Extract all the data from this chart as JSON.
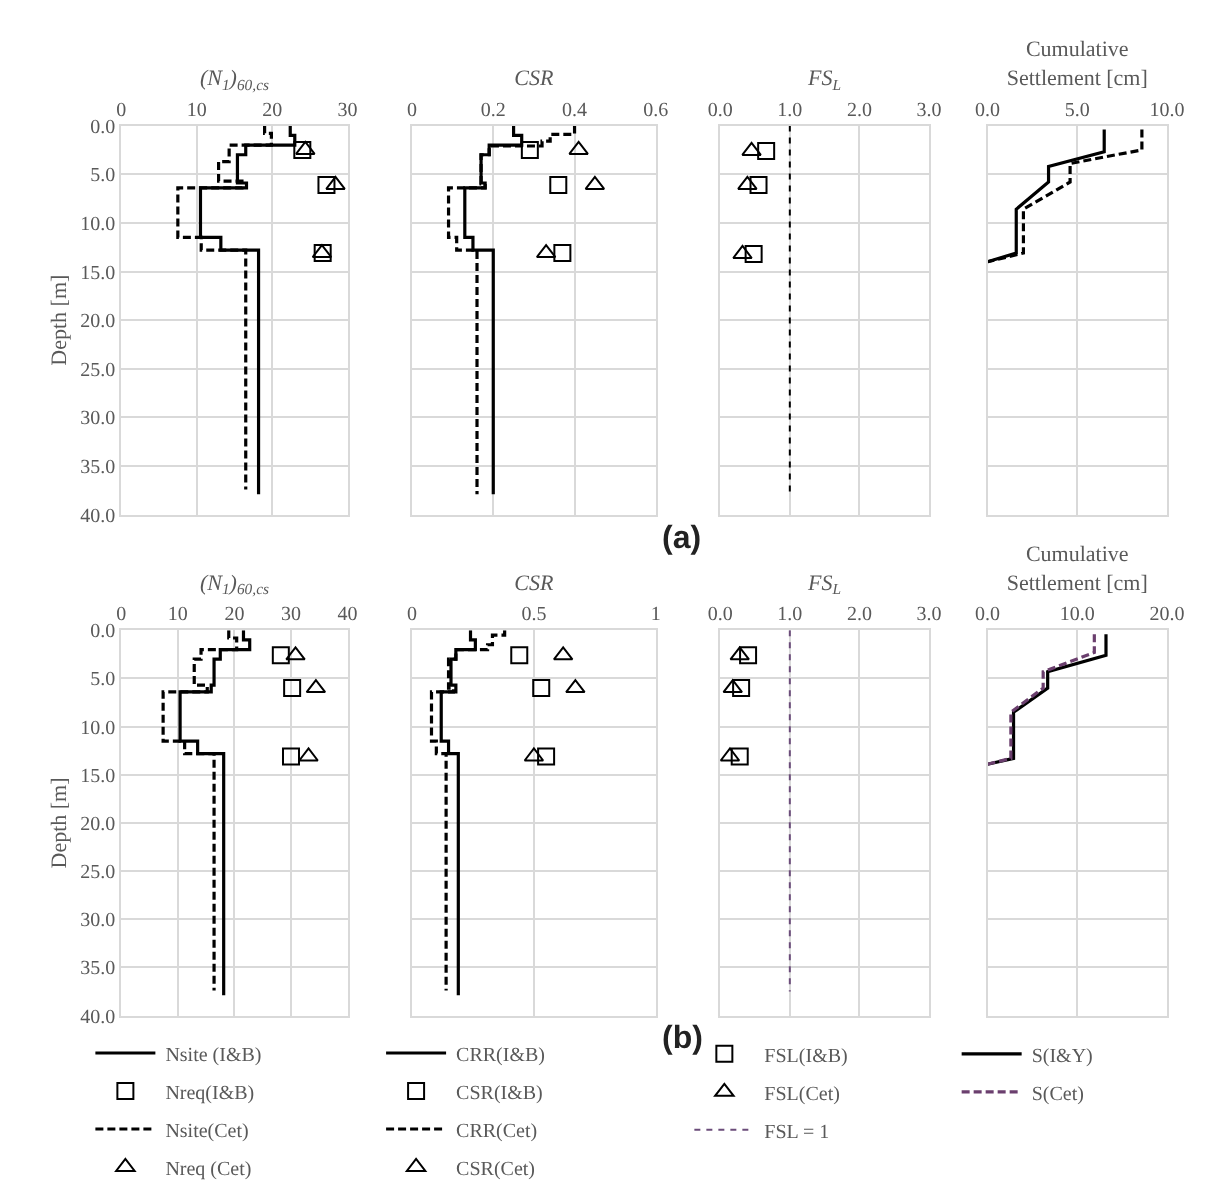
{
  "chart_data": [
    {
      "type": "line",
      "xlabel": "(N$_{1}$)$_{60,cs}$",
      "ylabel": "Depth [m]",
      "xlim": [
        0,
        30
      ],
      "xticks": [
        0,
        10,
        20,
        30
      ],
      "ylim": [
        40,
        0
      ],
      "yticks": [
        {
          "value": 0,
          "label": "0.0"
        },
        {
          "value": 5,
          "label": "5.0"
        },
        {
          "value": 10,
          "label": "10.0"
        },
        {
          "value": 15,
          "label": "15.0"
        },
        {
          "value": 20,
          "label": "20.0"
        },
        {
          "value": 25,
          "label": "25.0"
        },
        {
          "value": 30,
          "label": "30.0"
        },
        {
          "value": 35,
          "label": "35.0"
        },
        {
          "value": 40,
          "label": "40.0"
        }
      ],
      "grid": true,
      "series": [
        {
          "type": "line",
          "color": "#000000",
          "line_style": "solid",
          "marker": "none",
          "x": [
            22.4,
            22.4,
            23.0,
            23.0,
            16.5,
            16.5,
            15.4,
            15.4,
            16.6,
            16.6,
            10.5,
            10.5,
            13.2,
            13.2,
            18.2,
            18.2
          ],
          "values": [
            0,
            1.0,
            1.0,
            2.0,
            2.0,
            3.0,
            3.0,
            5.9,
            5.9,
            6.4,
            6.4,
            11.5,
            11.5,
            12.8,
            12.8,
            37.9
          ]
        },
        {
          "type": "scatter",
          "color": "#000000",
          "marker": "square",
          "x": [
            24.0,
            27.2,
            26.7
          ],
          "values": [
            2.5,
            6.1,
            13.1
          ]
        },
        {
          "type": "line",
          "color": "#000000",
          "line_style": "dashed",
          "marker": "none",
          "x": [
            19.0,
            19.0,
            19.9,
            19.9,
            14.3,
            14.3,
            12.9,
            12.9,
            16.0,
            16.0,
            7.5,
            7.5,
            10.6,
            10.6,
            16.5,
            16.5
          ],
          "values": [
            0,
            0.8,
            0.8,
            2.0,
            2.0,
            3.7,
            3.7,
            5.7,
            5.7,
            6.4,
            6.4,
            11.5,
            11.5,
            12.8,
            12.8,
            37.4
          ]
        },
        {
          "type": "scatter",
          "color": "#000000",
          "marker": "triangle",
          "x": [
            24.4,
            28.4,
            26.6
          ],
          "values": [
            2.5,
            6.1,
            13.1
          ]
        }
      ]
    },
    {
      "type": "line",
      "xlabel": "CSR",
      "xlim": [
        0,
        0.6
      ],
      "xticks": [
        0,
        0.2,
        0.4,
        0.6
      ],
      "ylim": [
        40,
        0
      ],
      "yticks": [
        0,
        5,
        10,
        15,
        20,
        25,
        30,
        35,
        40
      ],
      "grid": true,
      "tick_labels": "x",
      "series": [
        {
          "type": "line",
          "color": "#000000",
          "line_style": "solid",
          "marker": "none",
          "x": [
            0.25,
            0.25,
            0.27,
            0.27,
            0.19,
            0.19,
            0.17,
            0.17,
            0.18,
            0.18,
            0.13,
            0.13,
            0.15,
            0.15,
            0.2,
            0.2
          ],
          "values": [
            0,
            1.0,
            1.0,
            2.0,
            2.0,
            3.0,
            3.0,
            5.9,
            5.9,
            6.4,
            6.4,
            11.5,
            11.5,
            12.8,
            12.8,
            37.9
          ]
        },
        {
          "type": "scatter",
          "color": "#000000",
          "marker": "square",
          "x": [
            0.29,
            0.36,
            0.37
          ],
          "values": [
            2.5,
            6.1,
            13.1
          ]
        },
        {
          "type": "line",
          "color": "#000000",
          "line_style": "dashed",
          "marker": "none",
          "x": [
            0.4,
            0.4,
            0.34,
            0.34,
            0.32,
            0.32,
            0.19,
            0.19,
            0.17,
            0.17,
            0.18,
            0.18,
            0.09,
            0.09,
            0.11,
            0.11,
            0.16,
            0.16
          ],
          "values": [
            0,
            0.9,
            0.9,
            1.6,
            1.6,
            2.1,
            2.1,
            3.0,
            3.0,
            6.0,
            6.0,
            6.4,
            6.4,
            11.5,
            11.5,
            12.8,
            12.8,
            37.9
          ]
        },
        {
          "type": "scatter",
          "color": "#000000",
          "marker": "triangle",
          "x": [
            0.41,
            0.45,
            0.33
          ],
          "values": [
            2.5,
            6.1,
            13.1
          ]
        }
      ]
    },
    {
      "type": "line",
      "xlabel": "FS$_{L}$",
      "xlim": [
        0,
        3
      ],
      "xticks": [
        {
          "value": 0,
          "label": "0.0"
        },
        {
          "value": 1,
          "label": "1.0"
        },
        {
          "value": 2,
          "label": "2.0"
        },
        {
          "value": 3,
          "label": "3.0"
        }
      ],
      "ylim": [
        40,
        0
      ],
      "yticks": [
        0,
        5,
        10,
        15,
        20,
        25,
        30,
        35,
        40
      ],
      "grid": true,
      "tick_labels": "x",
      "annotations": [
        "(a)"
      ],
      "series": [
        {
          "type": "scatter",
          "color": "#000000",
          "marker": "square",
          "x": [
            0.66,
            0.55,
            0.48
          ],
          "values": [
            2.6,
            6.1,
            13.2
          ]
        },
        {
          "type": "scatter",
          "color": "#000000",
          "marker": "triangle",
          "x": [
            0.45,
            0.39,
            0.32
          ],
          "values": [
            2.6,
            6.1,
            13.2
          ]
        },
        {
          "type": "line",
          "color": "#000000",
          "line_style": "dotted",
          "marker": "none",
          "x": [
            1,
            1
          ],
          "values": [
            0,
            37.7
          ]
        }
      ]
    },
    {
      "type": "line",
      "xlabel": "Cumulative Settlement [cm]",
      "xlim": [
        0,
        10
      ],
      "xticks": [
        {
          "value": 0,
          "label": "0.0"
        },
        {
          "value": 5,
          "label": "5.0"
        },
        {
          "value": 10,
          "label": "10.0"
        }
      ],
      "ylim": [
        40,
        0
      ],
      "yticks": [
        0,
        5,
        10,
        15,
        20,
        25,
        30,
        35,
        40
      ],
      "grid": true,
      "tick_labels": "x",
      "series": [
        {
          "type": "line",
          "color": "#000000",
          "line_style": "solid",
          "marker": "none",
          "x": [
            6.5,
            6.5,
            3.4,
            3.4,
            1.6,
            1.6,
            0
          ],
          "values": [
            0.4,
            2.7,
            4.2,
            5.8,
            8.6,
            13.1,
            14.0
          ]
        },
        {
          "type": "line",
          "color": "#000000",
          "line_style": "dashed",
          "marker": "none",
          "x": [
            8.6,
            8.6,
            4.6,
            4.6,
            2.0,
            2.0,
            0
          ],
          "values": [
            0.4,
            2.5,
            3.9,
            5.8,
            8.6,
            13.1,
            14.0
          ]
        }
      ]
    },
    {
      "type": "line",
      "xlabel": "(N$_{1}$)$_{60,cs}$",
      "ylabel": "Depth [m]",
      "xlim": [
        0,
        40
      ],
      "xticks": [
        0,
        10,
        20,
        30,
        40
      ],
      "ylim": [
        40,
        0
      ],
      "yticks": [
        {
          "value": 0,
          "label": "0.0"
        },
        {
          "value": 5,
          "label": "5.0"
        },
        {
          "value": 10,
          "label": "10.0"
        },
        {
          "value": 15,
          "label": "15.0"
        },
        {
          "value": 20,
          "label": "20.0"
        },
        {
          "value": 25,
          "label": "25.0"
        },
        {
          "value": 30,
          "label": "30.0"
        },
        {
          "value": 35,
          "label": "35.0"
        },
        {
          "value": 40,
          "label": "40.0"
        }
      ],
      "grid": true,
      "legend": "bottom",
      "series": [
        {
          "name": "Nsite (I&B)",
          "type": "line",
          "color": "#000000",
          "line_style": "solid",
          "marker": "none",
          "x": [
            21.6,
            21.6,
            22.7,
            22.7,
            17.5,
            17.5,
            16.4,
            16.4,
            15.9,
            15.9,
            10.4,
            10.4,
            13.5,
            13.5,
            18.1,
            18.1
          ],
          "values": [
            0,
            1.0,
            1.0,
            2.0,
            2.0,
            3.0,
            3.0,
            5.7,
            5.7,
            6.4,
            6.4,
            11.5,
            11.5,
            12.8,
            12.8,
            37.9
          ]
        },
        {
          "name": "Nreq(I&B)",
          "type": "scatter",
          "color": "#000000",
          "marker": "square",
          "x": [
            28.2,
            30.2,
            30.0
          ],
          "values": [
            2.6,
            6.0,
            13.1
          ]
        },
        {
          "name": "Nsite(Cet)",
          "type": "line",
          "color": "#000000",
          "line_style": "dashed",
          "marker": "none",
          "x": [
            19.0,
            19.0,
            20.4,
            20.4,
            14.1,
            14.1,
            12.9,
            12.9,
            15.2,
            15.2,
            7.4,
            7.4,
            11.2,
            11.2,
            16.4,
            16.4
          ],
          "values": [
            0,
            0.8,
            0.8,
            2.0,
            2.0,
            3.0,
            3.0,
            5.7,
            5.7,
            6.4,
            6.4,
            11.5,
            11.5,
            12.8,
            12.8,
            37.4
          ]
        },
        {
          "name": "Nreq (Cet)",
          "type": "scatter",
          "color": "#000000",
          "marker": "triangle",
          "x": [
            30.8,
            34.4,
            33.1
          ],
          "values": [
            2.6,
            6.0,
            13.1
          ]
        }
      ]
    },
    {
      "type": "line",
      "xlabel": "CSR",
      "xlim": [
        0,
        1
      ],
      "xticks": [
        0,
        0.5,
        1
      ],
      "ylim": [
        40,
        0
      ],
      "yticks": [
        0,
        5,
        10,
        15,
        20,
        25,
        30,
        35,
        40
      ],
      "grid": true,
      "tick_labels": "x",
      "legend": "bottom",
      "series": [
        {
          "name": "CRR(I&B)",
          "type": "line",
          "color": "#000000",
          "line_style": "solid",
          "marker": "none",
          "x": [
            0.24,
            0.24,
            0.26,
            0.26,
            0.18,
            0.18,
            0.16,
            0.16,
            0.18,
            0.18,
            0.12,
            0.12,
            0.15,
            0.15,
            0.19,
            0.19
          ],
          "values": [
            0,
            1.0,
            1.0,
            2.0,
            2.0,
            3.0,
            3.0,
            5.7,
            5.7,
            6.4,
            6.4,
            11.5,
            11.5,
            12.8,
            12.8,
            37.9
          ]
        },
        {
          "name": "CSR(I&B)",
          "type": "scatter",
          "color": "#000000",
          "marker": "square",
          "x": [
            0.44,
            0.53,
            0.55
          ],
          "values": [
            2.6,
            6.0,
            13.1
          ]
        },
        {
          "name": "CRR(Cet)",
          "type": "line",
          "color": "#000000",
          "line_style": "dashed",
          "marker": "none",
          "x": [
            0.38,
            0.38,
            0.33,
            0.33,
            0.31,
            0.31,
            0.18,
            0.18,
            0.15,
            0.15,
            0.17,
            0.17,
            0.08,
            0.08,
            0.1,
            0.1,
            0.14,
            0.14
          ],
          "values": [
            0,
            0.5,
            0.5,
            1.5,
            1.5,
            2.0,
            2.0,
            3.0,
            3.0,
            6.0,
            6.0,
            6.4,
            6.4,
            11.5,
            11.5,
            12.8,
            12.8,
            37.4
          ]
        },
        {
          "name": "CSR(Cet)",
          "type": "scatter",
          "color": "#000000",
          "marker": "triangle",
          "x": [
            0.62,
            0.67,
            0.5
          ],
          "values": [
            2.6,
            6.0,
            13.1
          ]
        }
      ]
    },
    {
      "type": "line",
      "xlabel": "FS$_{L}$",
      "xlim": [
        0,
        3
      ],
      "xticks": [
        {
          "value": 0,
          "label": "0.0"
        },
        {
          "value": 1,
          "label": "1.0"
        },
        {
          "value": 2,
          "label": "2.0"
        },
        {
          "value": 3,
          "label": "3.0"
        }
      ],
      "ylim": [
        40,
        0
      ],
      "yticks": [
        0,
        5,
        10,
        15,
        20,
        25,
        30,
        35,
        40
      ],
      "grid": true,
      "tick_labels": "x",
      "legend": "bottom",
      "annotations": [
        "(b)"
      ],
      "series": [
        {
          "name": "FSL(I&B)",
          "type": "scatter",
          "color": "#000000",
          "marker": "square",
          "x": [
            0.4,
            0.3,
            0.28
          ],
          "values": [
            2.6,
            6.0,
            13.1
          ]
        },
        {
          "name": "FSL(Cet)",
          "type": "scatter",
          "color": "#000000",
          "marker": "triangle",
          "x": [
            0.28,
            0.18,
            0.14
          ],
          "values": [
            2.6,
            6.0,
            13.1
          ]
        },
        {
          "name": "FSL = 1",
          "type": "line",
          "color": "#6b4c7a",
          "line_style": "dotted",
          "marker": "none",
          "x": [
            1,
            1
          ],
          "values": [
            0,
            37.5
          ]
        }
      ]
    },
    {
      "type": "line",
      "xlabel": "Cumulative Settlement [cm]",
      "xlim": [
        0,
        20
      ],
      "xticks": [
        {
          "value": 0,
          "label": "0.0"
        },
        {
          "value": 10,
          "label": "10.0"
        },
        {
          "value": 20,
          "label": "20.0"
        }
      ],
      "ylim": [
        40,
        0
      ],
      "yticks": [
        0,
        5,
        10,
        15,
        20,
        25,
        30,
        35,
        40
      ],
      "grid": true,
      "tick_labels": "x",
      "legend": "bottom",
      "series": [
        {
          "name": "S(I&Y)",
          "type": "line",
          "color": "#000000",
          "line_style": "solid",
          "marker": "none",
          "x": [
            13.2,
            13.2,
            6.7,
            6.7,
            2.9,
            2.9,
            0
          ],
          "values": [
            0.4,
            2.6,
            4.3,
            6.0,
            8.5,
            13.3,
            13.9
          ]
        },
        {
          "name": "S(Cet)",
          "type": "line",
          "color": "#6b3f6e",
          "line_style": "dashed",
          "marker": "none",
          "x": [
            11.9,
            11.9,
            6.2,
            6.2,
            2.6,
            2.6,
            0
          ],
          "values": [
            0.4,
            2.3,
            4.3,
            6.0,
            8.5,
            13.3,
            13.9
          ]
        }
      ]
    }
  ]
}
